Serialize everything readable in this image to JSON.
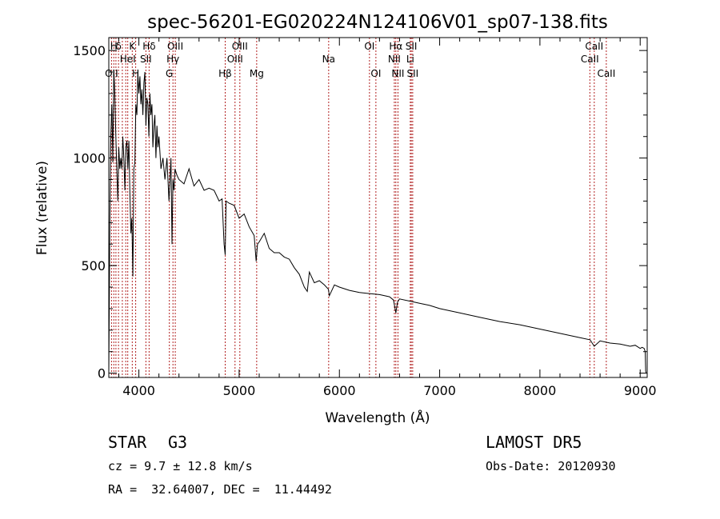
{
  "chart_data": {
    "type": "line",
    "title": "spec-56201-EG020224N124106V01_sp07-138.fits",
    "xlabel": "Wavelength (Å)",
    "ylabel": "Flux (relative)",
    "xlim": [
      3700,
      9070
    ],
    "ylim": [
      -20,
      1560
    ],
    "x_ticks": [
      4000,
      5000,
      6000,
      7000,
      8000,
      9000
    ],
    "y_ticks": [
      0,
      500,
      1000,
      1500
    ],
    "grid": false,
    "legend": "none",
    "line_color": "#000000",
    "marker_color": "#b22222",
    "series": [
      {
        "x": [
          3700,
          3710,
          3720,
          3730,
          3740,
          3750,
          3760,
          3770,
          3780,
          3790,
          3800,
          3810,
          3820,
          3830,
          3840,
          3850,
          3860,
          3870,
          3880,
          3890,
          3900,
          3910,
          3920,
          3930,
          3940,
          3950,
          3960,
          3970,
          3980,
          3990,
          4000,
          4010,
          4020,
          4030,
          4040,
          4050,
          4060,
          4070,
          4080,
          4090,
          4100,
          4110,
          4120,
          4130,
          4140,
          4150,
          4160,
          4170,
          4180,
          4190,
          4200,
          4220,
          4240,
          4260,
          4280,
          4300,
          4320,
          4330,
          4340,
          4350,
          4360,
          4380,
          4400,
          4450,
          4500,
          4550,
          4600,
          4650,
          4700,
          4750,
          4800,
          4830,
          4850,
          4861,
          4870,
          4900,
          4950,
          5000,
          5050,
          5100,
          5150,
          5170,
          5183,
          5200,
          5250,
          5300,
          5350,
          5400,
          5450,
          5500,
          5550,
          5600,
          5650,
          5680,
          5700,
          5750,
          5800,
          5850,
          5890,
          5900,
          5950,
          6000,
          6100,
          6200,
          6300,
          6400,
          6500,
          6540,
          6563,
          6580,
          6600,
          6700,
          6800,
          6900,
          7000,
          7200,
          7400,
          7600,
          7800,
          8000,
          8200,
          8400,
          8500,
          8542,
          8600,
          8700,
          8800,
          8900,
          8950,
          9000,
          9020,
          9040,
          9050,
          9055,
          9060
        ],
        "values": [
          0,
          700,
          1100,
          1250,
          980,
          1410,
          1300,
          1100,
          950,
          800,
          1050,
          950,
          1000,
          950,
          1100,
          1000,
          850,
          1050,
          1080,
          950,
          1080,
          850,
          650,
          720,
          450,
          950,
          980,
          1250,
          1200,
          1400,
          1300,
          1380,
          1250,
          1320,
          1200,
          1350,
          1400,
          1150,
          1280,
          1250,
          1100,
          1300,
          1200,
          1250,
          1050,
          1150,
          1200,
          1000,
          1150,
          1050,
          1100,
          950,
          1000,
          900,
          1000,
          800,
          1000,
          600,
          900,
          850,
          950,
          920,
          900,
          880,
          950,
          870,
          900,
          850,
          860,
          850,
          800,
          810,
          600,
          550,
          800,
          790,
          780,
          720,
          740,
          680,
          640,
          520,
          600,
          610,
          650,
          580,
          560,
          560,
          540,
          530,
          490,
          460,
          400,
          380,
          470,
          420,
          430,
          410,
          390,
          360,
          410,
          400,
          385,
          375,
          370,
          365,
          355,
          340,
          280,
          330,
          345,
          335,
          325,
          315,
          300,
          280,
          260,
          240,
          225,
          205,
          185,
          165,
          155,
          125,
          150,
          140,
          135,
          125,
          130,
          115,
          120,
          115,
          100,
          10,
          0
        ]
      }
    ],
    "lines": [
      {
        "x": 3727,
        "label": "OII",
        "row": 3
      },
      {
        "x": 3750,
        "label": "H",
        "row": 1
      },
      {
        "x": 3771,
        "label": "",
        "row": 1
      },
      {
        "x": 3797,
        "label": "δ",
        "row": 1
      },
      {
        "x": 3835,
        "label": "",
        "row": 1
      },
      {
        "x": 3869,
        "label": "",
        "row": 2
      },
      {
        "x": 3889,
        "label": "HeI",
        "row": 2
      },
      {
        "x": 3934,
        "label": "K",
        "row": 1
      },
      {
        "x": 3968,
        "label": "H",
        "row": 3
      },
      {
        "x": 4070,
        "label": "SII",
        "row": 2
      },
      {
        "x": 4102,
        "label": "Hδ",
        "row": 1
      },
      {
        "x": 4304,
        "label": "G",
        "row": 3
      },
      {
        "x": 4340,
        "label": "Hγ",
        "row": 2
      },
      {
        "x": 4363,
        "label": "OIII",
        "row": 1
      },
      {
        "x": 4861,
        "label": "Hβ",
        "row": 3
      },
      {
        "x": 4959,
        "label": "OIII",
        "row": 2
      },
      {
        "x": 5007,
        "label": "OIII",
        "row": 1
      },
      {
        "x": 5175,
        "label": "Mg",
        "row": 3
      },
      {
        "x": 5893,
        "label": "Na",
        "row": 2
      },
      {
        "x": 6300,
        "label": "OI",
        "row": 1
      },
      {
        "x": 6364,
        "label": "OI",
        "row": 3
      },
      {
        "x": 6548,
        "label": "NII",
        "row": 2
      },
      {
        "x": 6563,
        "label": "Hα",
        "row": 1
      },
      {
        "x": 6584,
        "label": "NII",
        "row": 3
      },
      {
        "x": 6707,
        "label": "Li",
        "row": 2
      },
      {
        "x": 6717,
        "label": "SII",
        "row": 1
      },
      {
        "x": 6731,
        "label": "SII",
        "row": 3
      },
      {
        "x": 8498,
        "label": "CaII",
        "row": 2
      },
      {
        "x": 8542,
        "label": "CaII",
        "row": 1
      },
      {
        "x": 8662,
        "label": "CaII",
        "row": 3
      }
    ]
  },
  "footer": {
    "object_class": "STAR",
    "subclass": "G3",
    "survey": "LAMOST DR5",
    "redshift": "cz = 9.7 ± 12.8 km/s",
    "obs_date": "Obs-Date: 20120930",
    "coords": "RA =  32.64007, DEC =  11.44492"
  }
}
